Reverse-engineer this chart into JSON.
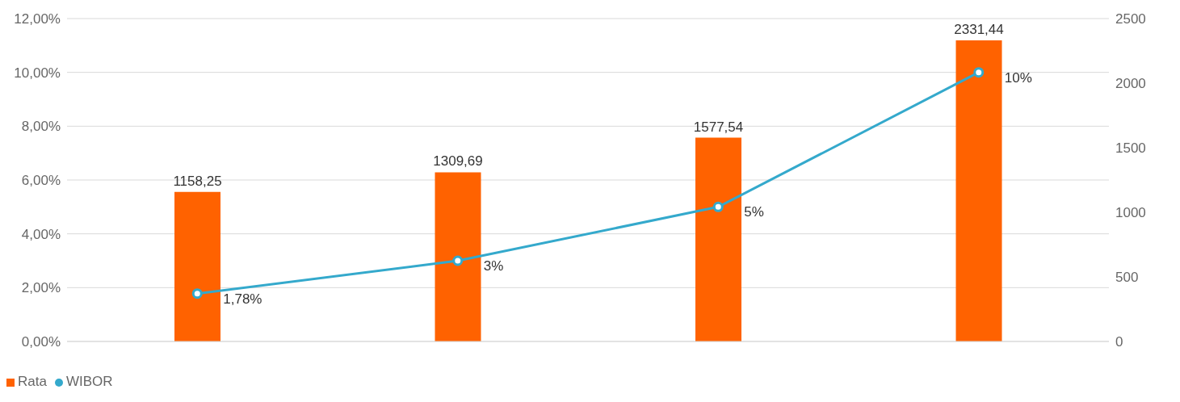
{
  "chart_data": {
    "type": "bar",
    "categories": [
      null,
      null,
      null,
      null
    ],
    "series": [
      {
        "name": "Rata",
        "axis": "y2",
        "color": "#ff6200",
        "values": [
          1158.25,
          1309.69,
          1577.54,
          2331.44
        ],
        "value_labels": [
          "1158,25",
          "1309,69",
          "1577,54",
          "2331,44"
        ]
      },
      {
        "name": "WIBOR",
        "type": "line",
        "axis": "y",
        "color": "#34a9cc",
        "values": [
          1.78,
          3,
          5,
          10
        ],
        "value_labels": [
          "1,78%",
          "3%",
          "5%",
          "10%"
        ]
      }
    ],
    "ylim": [
      0,
      12
    ],
    "yticks": [
      {
        "value": 0,
        "label": "0,00%"
      },
      {
        "value": 2,
        "label": "2,00%"
      },
      {
        "value": 4,
        "label": "4,00%"
      },
      {
        "value": 6,
        "label": "6,00%"
      },
      {
        "value": 8,
        "label": "8,00%"
      },
      {
        "value": 10,
        "label": "10,00%"
      },
      {
        "value": 12,
        "label": "12,00%"
      }
    ],
    "y2lim": [
      0,
      2500
    ],
    "y2ticks": [
      0,
      500,
      1000,
      1500,
      2000,
      2500
    ],
    "grid": "y",
    "legend": "bottom left",
    "marker": "circle",
    "line_style": "solid"
  }
}
